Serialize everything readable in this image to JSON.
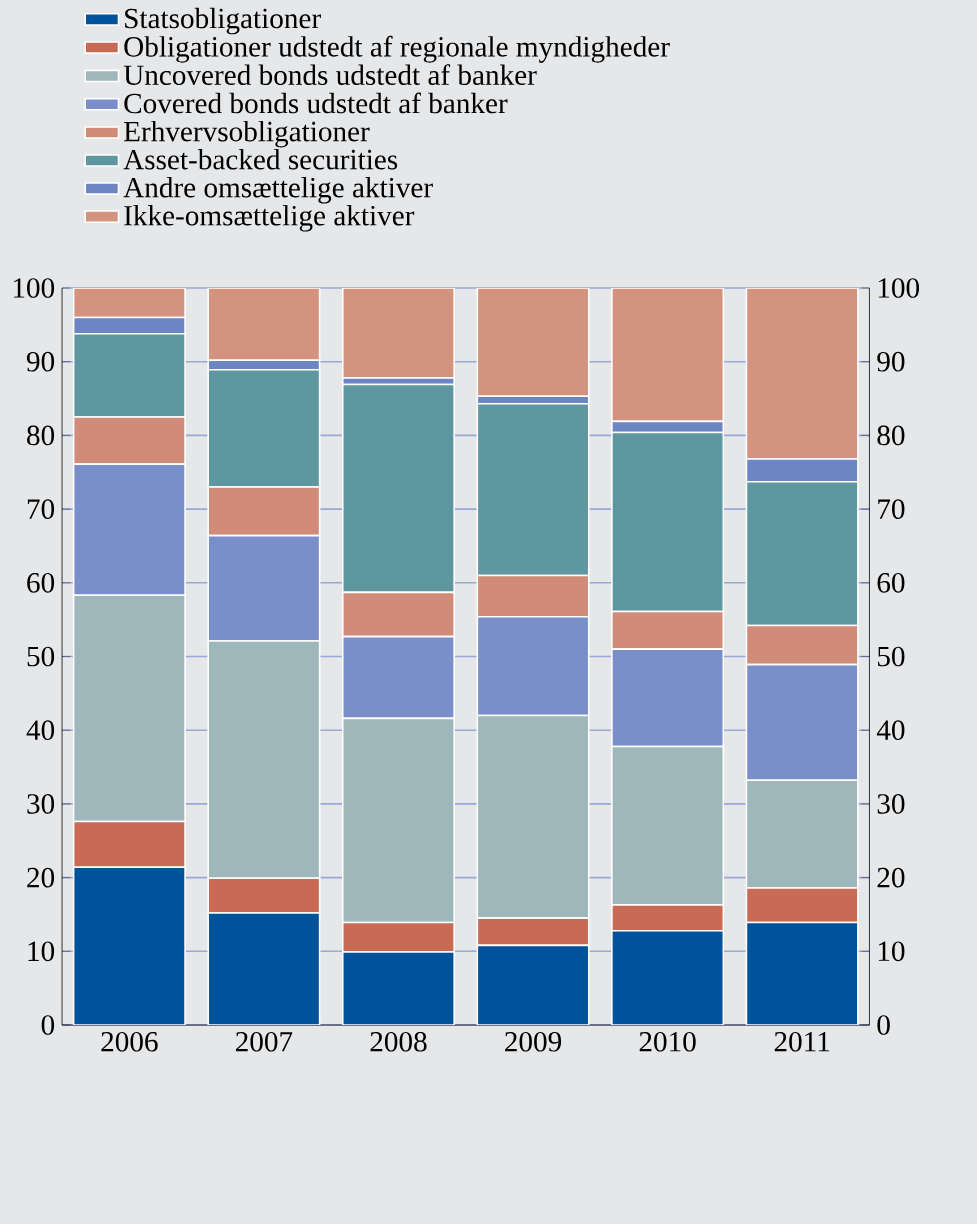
{
  "chart_data": {
    "type": "bar",
    "stacked": true,
    "categories": [
      "2006",
      "2007",
      "2008",
      "2009",
      "2010",
      "2011"
    ],
    "series": [
      {
        "name": "Statsobligationer",
        "color": "#00529b",
        "values": [
          21.4,
          15.2,
          9.9,
          10.8,
          12.8,
          13.9
        ]
      },
      {
        "name": "Obligationer udstedt af regionale myndigheder",
        "color": "#c96a55",
        "values": [
          6.2,
          4.7,
          4.0,
          3.7,
          3.5,
          4.7
        ]
      },
      {
        "name": "Uncovered bonds udstedt af banker",
        "color": "#9db7bb",
        "values": [
          30.7,
          32.2,
          27.7,
          27.5,
          21.5,
          14.6
        ]
      },
      {
        "name": "Covered bonds udstedt af banker",
        "color": "#7a8fca",
        "values": [
          17.8,
          14.3,
          11.1,
          13.4,
          13.2,
          15.7
        ]
      },
      {
        "name": "Erhvervsobligationer",
        "color": "#d08c78",
        "values": [
          6.4,
          6.6,
          6.0,
          5.6,
          5.1,
          5.3
        ]
      },
      {
        "name": "Asset-backed securities",
        "color": "#5f97a1",
        "values": [
          11.3,
          15.9,
          28.2,
          23.3,
          24.3,
          19.5
        ]
      },
      {
        "name": "Andre omsættelige aktiver",
        "color": "#6c86c4",
        "values": [
          2.2,
          1.3,
          0.9,
          1.0,
          1.5,
          3.1
        ]
      },
      {
        "name": "Ikke-omsættelige aktiver",
        "color": "#d4937f",
        "values": [
          4.0,
          9.8,
          12.2,
          14.7,
          18.1,
          23.2
        ]
      }
    ],
    "ylim": [
      0,
      100
    ],
    "yticks": [
      0,
      10,
      20,
      30,
      40,
      50,
      60,
      70,
      80,
      90,
      100
    ],
    "y2lim": [
      0,
      100
    ],
    "y2ticks": [
      0,
      10,
      20,
      30,
      40,
      50,
      60,
      70,
      80,
      90,
      100
    ],
    "grid": "y",
    "legend": "top"
  }
}
